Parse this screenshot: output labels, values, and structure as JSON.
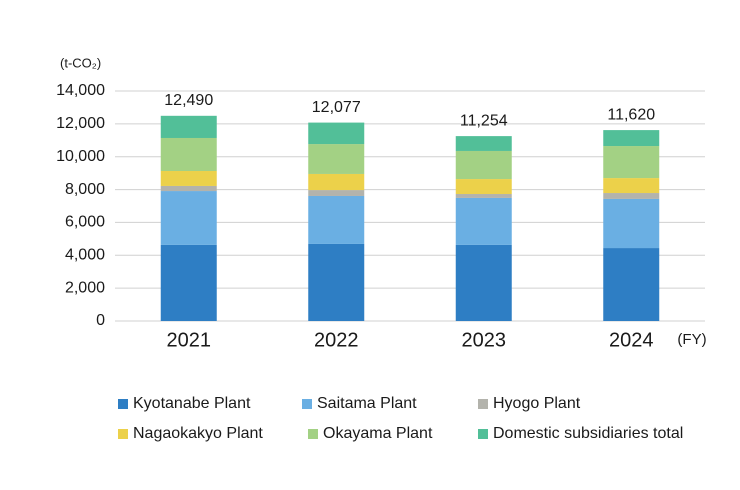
{
  "chart_data": {
    "type": "stacked-bar",
    "y_unit": "(t-CO₂)",
    "x_unit": "(FY)",
    "categories": [
      "2021",
      "2022",
      "2023",
      "2024"
    ],
    "series": [
      {
        "name": "Kyotanabe Plant",
        "color": "#2e7ec4",
        "values": [
          4630,
          4690,
          4630,
          4440
        ]
      },
      {
        "name": "Saitama Plant",
        "color": "#6aafe3",
        "values": [
          3280,
          2920,
          2860,
          2990
        ]
      },
      {
        "name": "Hyogo Plant",
        "color": "#b3b3ac",
        "values": [
          310,
          360,
          240,
          360
        ]
      },
      {
        "name": "Nagaokakyo Plant",
        "color": "#ecd14a",
        "values": [
          910,
          980,
          910,
          910
        ]
      },
      {
        "name": "Okayama Plant",
        "color": "#a3d184",
        "values": [
          2010,
          1820,
          1710,
          1950
        ]
      },
      {
        "name": "Domestic subsidiaries total",
        "color": "#52bf98",
        "values": [
          1350,
          1307,
          904,
          970
        ]
      }
    ],
    "totals": [
      12490,
      12077,
      11254,
      11620
    ],
    "totals_labels": [
      "12,490",
      "12,077",
      "11,254",
      "11,620"
    ],
    "ylim": [
      0,
      14000
    ],
    "yticks": [
      0,
      {
        "value": 2000,
        "label": "2,000"
      },
      {
        "value": 4000,
        "label": "4,000"
      },
      {
        "value": 6000,
        "label": "6,000"
      },
      {
        "value": 8000,
        "label": "8,000"
      },
      {
        "value": 10000,
        "label": "10,000"
      },
      {
        "value": 12000,
        "label": "12,000"
      },
      {
        "value": 14000,
        "label": "14,000"
      }
    ],
    "grid": true
  }
}
